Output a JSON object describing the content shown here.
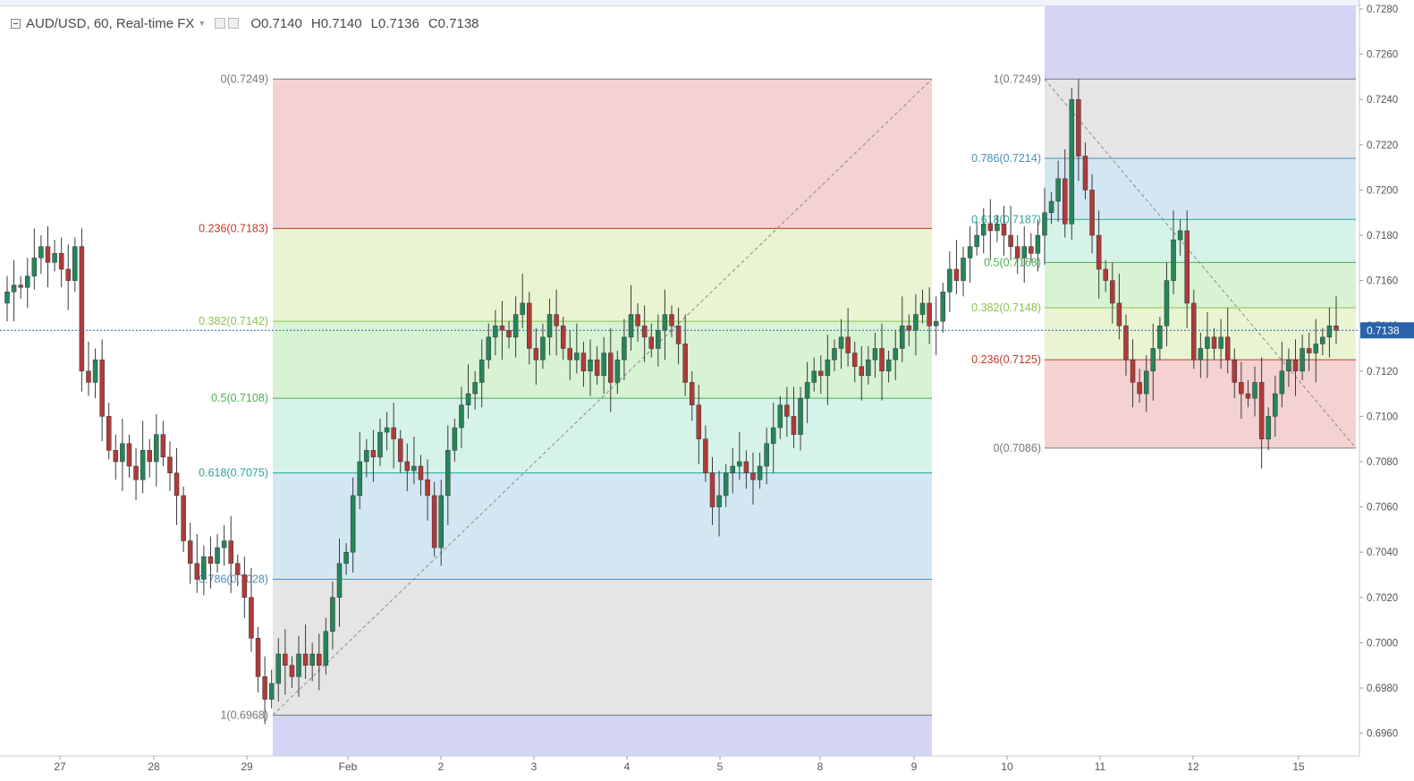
{
  "symbol": {
    "title": "AUD/USD, 60, Real-time FX",
    "open": "O0.7140",
    "high": "H0.7140",
    "low": "L0.7136",
    "close": "C0.7138",
    "caret_icon": "caret-down-icon",
    "settings_icons": [
      "eye-icon",
      "gear-icon"
    ]
  },
  "price_scale": {
    "ticks": [
      "0.7280",
      "0.7260",
      "0.7240",
      "0.7220",
      "0.7200",
      "0.7180",
      "0.7160",
      "0.7140",
      "0.7120",
      "0.7100",
      "0.7080",
      "0.7060",
      "0.7040",
      "0.7020",
      "0.7000",
      "0.6980",
      "0.6960"
    ],
    "current_price_label": "0.7138",
    "current_price_color": "#2962a8"
  },
  "time_scale": {
    "labels": [
      "27",
      "28",
      "29",
      "Feb",
      "2",
      "3",
      "4",
      "5",
      "8",
      "9",
      "10",
      "11",
      "12",
      "15"
    ]
  },
  "fib1": {
    "levels": [
      {
        "label": "0(0.7249)",
        "price": 0.7249,
        "line": "#787878",
        "fill": "#f4d2d2"
      },
      {
        "label": "0.236(0.7183)",
        "price": 0.7183,
        "line": "#c0392b",
        "fill": "#e9f4d2"
      },
      {
        "label": "0.382(0.7142)",
        "price": 0.7142,
        "line": "#8bc34a",
        "fill": "#d8f2d4"
      },
      {
        "label": "0.5(0.7108)",
        "price": 0.7108,
        "line": "#4caf50",
        "fill": "#d5f3e9"
      },
      {
        "label": "0.618(0.7075)",
        "price": 0.7075,
        "line": "#26a69a",
        "fill": "#d3e7f3"
      },
      {
        "label": "0.786(0.7028)",
        "price": 0.7028,
        "line": "#4a90b8",
        "fill": "#e5e5e5"
      },
      {
        "label": "1(0.6968)",
        "price": 0.6968,
        "line": "#787878",
        "fill": "#d4d4f5"
      }
    ]
  },
  "fib2": {
    "levels": [
      {
        "label": "1(0.7249)",
        "price": 0.7249,
        "line": "#787878",
        "fill": "#e5e5e5"
      },
      {
        "label": "0.786(0.7214)",
        "price": 0.7214,
        "line": "#4a90b8",
        "fill": "#d3e7f3"
      },
      {
        "label": "0.618(0.7187)",
        "price": 0.7187,
        "line": "#26a69a",
        "fill": "#d5f3e9"
      },
      {
        "label": "0.5(0.7168)",
        "price": 0.7168,
        "line": "#4caf50",
        "fill": "#d8f2d4"
      },
      {
        "label": "0.382(0.7148)",
        "price": 0.7148,
        "line": "#8bc34a",
        "fill": "#e9f4d2"
      },
      {
        "label": "0.236(0.7125)",
        "price": 0.7125,
        "line": "#c0392b",
        "fill": "#f4d2d2"
      },
      {
        "label": "0(0.7086)",
        "price": 0.7086,
        "line": "#787878",
        "fill": null
      }
    ]
  },
  "colors": {
    "up": "#26855a",
    "down": "#b03a3a",
    "wick": "#3a3a3a",
    "grid": "#e6e6e6",
    "axis_text": "#555555"
  },
  "chart_data": {
    "type": "candlestick",
    "title": "AUD/USD, 60, Real-time FX",
    "price_range": [
      0.6954,
      0.7285
    ],
    "closes": [
      0.7155,
      0.7158,
      0.7157,
      0.7162,
      0.717,
      0.7175,
      0.7168,
      0.7172,
      0.7165,
      0.716,
      0.7175,
      0.712,
      0.7115,
      0.7125,
      0.71,
      0.7085,
      0.708,
      0.7088,
      0.7078,
      0.7072,
      0.7085,
      0.708,
      0.7092,
      0.7082,
      0.7075,
      0.7065,
      0.7045,
      0.7035,
      0.7028,
      0.7038,
      0.7035,
      0.7042,
      0.7045,
      0.7035,
      0.703,
      0.702,
      0.7002,
      0.6985,
      0.6975,
      0.6982,
      0.6995,
      0.699,
      0.6985,
      0.6995,
      0.699,
      0.6995,
      0.699,
      0.7005,
      0.702,
      0.7035,
      0.704,
      0.7065,
      0.708,
      0.7085,
      0.7082,
      0.7093,
      0.7095,
      0.709,
      0.708,
      0.7076,
      0.7078,
      0.7072,
      0.7065,
      0.7042,
      0.7065,
      0.7085,
      0.7095,
      0.7105,
      0.711,
      0.7115,
      0.7125,
      0.7135,
      0.714,
      0.7138,
      0.7135,
      0.7145,
      0.715,
      0.713,
      0.7125,
      0.7135,
      0.7145,
      0.714,
      0.713,
      0.7125,
      0.7128,
      0.712,
      0.7125,
      0.7118,
      0.7128,
      0.7115,
      0.7125,
      0.7135,
      0.7145,
      0.714,
      0.7135,
      0.713,
      0.7138,
      0.7145,
      0.714,
      0.7132,
      0.7115,
      0.7105,
      0.709,
      0.7075,
      0.706,
      0.7065,
      0.7075,
      0.7078,
      0.708,
      0.7075,
      0.7072,
      0.7078,
      0.7088,
      0.7095,
      0.7105,
      0.71,
      0.7092,
      0.7108,
      0.7115,
      0.712,
      0.7118,
      0.7125,
      0.713,
      0.7135,
      0.7128,
      0.7122,
      0.7118,
      0.7125,
      0.713,
      0.712,
      0.7125,
      0.713,
      0.714,
      0.7138,
      0.7145,
      0.715,
      0.714,
      0.7142,
      0.7155,
      0.7165,
      0.716,
      0.717,
      0.7175,
      0.718,
      0.7185,
      0.7182,
      0.7185,
      0.718,
      0.7175,
      0.717,
      0.7175,
      0.7172,
      0.718,
      0.719,
      0.7195,
      0.7205,
      0.7185,
      0.724,
      0.7215,
      0.72,
      0.718,
      0.7165,
      0.716,
      0.715,
      0.714,
      0.7125,
      0.7115,
      0.711,
      0.712,
      0.713,
      0.714,
      0.716,
      0.7178,
      0.7182,
      0.715,
      0.7125,
      0.713,
      0.7135,
      0.713,
      0.7135,
      0.7125,
      0.7115,
      0.711,
      0.7108,
      0.7115,
      0.709,
      0.71,
      0.711,
      0.712,
      0.7125,
      0.712,
      0.713,
      0.7128,
      0.7132,
      0.7135,
      0.714,
      0.7138
    ]
  }
}
